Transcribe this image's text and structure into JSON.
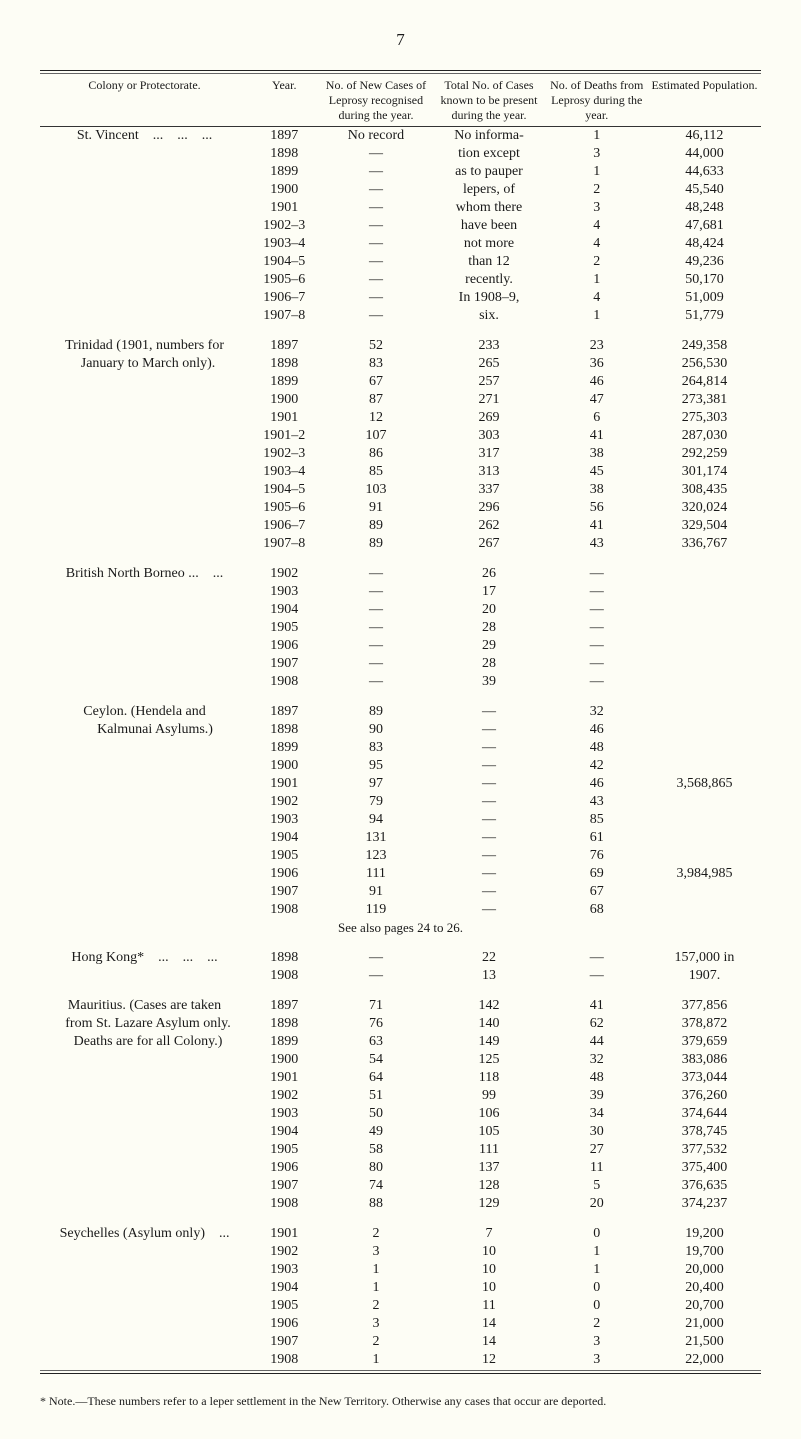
{
  "page_number": "7",
  "header": {
    "col1": "Colony or Protectorate.",
    "col2": "Year.",
    "col3": "No. of New Cases of Leprosy recognised during the year.",
    "col4": "Total No. of Cases known to be present during the year.",
    "col5": "No. of Deaths from Leprosy during the year.",
    "col6": "Estimated Population."
  },
  "st_vincent": {
    "name": "St. Vincent",
    "years": [
      "1897",
      "1898",
      "1899",
      "1900",
      "1901",
      "1902–3",
      "1903–4",
      "1904–5",
      "1905–6",
      "1906–7",
      "1907–8"
    ],
    "new_note": "No record",
    "known_note_lines": [
      "No informa-",
      "tion except",
      "as to pauper",
      "lepers, of",
      "whom there",
      "have been",
      "not more",
      "than 12",
      "recently.",
      "In 1908–9,",
      "six."
    ],
    "deaths": [
      "1",
      "3",
      "1",
      "2",
      "3",
      "4",
      "4",
      "2",
      "1",
      "4",
      "1"
    ],
    "pop": [
      "46,112",
      "44,000",
      "44,633",
      "45,540",
      "48,248",
      "47,681",
      "48,424",
      "49,236",
      "50,170",
      "51,009",
      "51,779"
    ]
  },
  "trinidad": {
    "name": "Trinidad (1901, numbers for January to March only).",
    "rows": [
      {
        "year": "1897",
        "new": "52",
        "known": "233",
        "deaths": "23",
        "pop": "249,358"
      },
      {
        "year": "1898",
        "new": "83",
        "known": "265",
        "deaths": "36",
        "pop": "256,530"
      },
      {
        "year": "1899",
        "new": "67",
        "known": "257",
        "deaths": "46",
        "pop": "264,814"
      },
      {
        "year": "1900",
        "new": "87",
        "known": "271",
        "deaths": "47",
        "pop": "273,381"
      },
      {
        "year": "1901",
        "new": "12",
        "known": "269",
        "deaths": "6",
        "pop": "275,303"
      },
      {
        "year": "1901–2",
        "new": "107",
        "known": "303",
        "deaths": "41",
        "pop": "287,030"
      },
      {
        "year": "1902–3",
        "new": "86",
        "known": "317",
        "deaths": "38",
        "pop": "292,259"
      },
      {
        "year": "1903–4",
        "new": "85",
        "known": "313",
        "deaths": "45",
        "pop": "301,174"
      },
      {
        "year": "1904–5",
        "new": "103",
        "known": "337",
        "deaths": "38",
        "pop": "308,435"
      },
      {
        "year": "1905–6",
        "new": "91",
        "known": "296",
        "deaths": "56",
        "pop": "320,024"
      },
      {
        "year": "1906–7",
        "new": "89",
        "known": "262",
        "deaths": "41",
        "pop": "329,504"
      },
      {
        "year": "1907–8",
        "new": "89",
        "known": "267",
        "deaths": "43",
        "pop": "336,767"
      }
    ]
  },
  "bnb": {
    "name": "British North Borneo ...",
    "rows": [
      {
        "year": "1902",
        "known": "26"
      },
      {
        "year": "1903",
        "known": "17"
      },
      {
        "year": "1904",
        "known": "20"
      },
      {
        "year": "1905",
        "known": "28"
      },
      {
        "year": "1906",
        "known": "29"
      },
      {
        "year": "1907",
        "known": "28"
      },
      {
        "year": "1908",
        "known": "39"
      }
    ]
  },
  "ceylon": {
    "name": "Ceylon. (Hendela and Kalmunai Asylums.)",
    "rows": [
      {
        "year": "1897",
        "new": "89",
        "deaths": "32",
        "pop": ""
      },
      {
        "year": "1898",
        "new": "90",
        "deaths": "46",
        "pop": ""
      },
      {
        "year": "1899",
        "new": "83",
        "deaths": "48",
        "pop": ""
      },
      {
        "year": "1900",
        "new": "95",
        "deaths": "42",
        "pop": ""
      },
      {
        "year": "1901",
        "new": "97",
        "deaths": "46",
        "pop": "3,568,865"
      },
      {
        "year": "1902",
        "new": "79",
        "deaths": "43",
        "pop": ""
      },
      {
        "year": "1903",
        "new": "94",
        "deaths": "85",
        "pop": ""
      },
      {
        "year": "1904",
        "new": "131",
        "deaths": "61",
        "pop": ""
      },
      {
        "year": "1905",
        "new": "123",
        "deaths": "76",
        "pop": ""
      },
      {
        "year": "1906",
        "new": "111",
        "deaths": "69",
        "pop": "3,984,985"
      },
      {
        "year": "1907",
        "new": "91",
        "deaths": "67",
        "pop": ""
      },
      {
        "year": "1908",
        "new": "119",
        "deaths": "68",
        "pop": ""
      }
    ],
    "see_also": "See also pages 24 to 26."
  },
  "hongkong": {
    "name": "Hong Kong*",
    "rows": [
      {
        "year": "1898",
        "known": "22",
        "pop": "157,000 in"
      },
      {
        "year": "1908",
        "known": "13",
        "pop": "1907."
      }
    ]
  },
  "mauritius": {
    "name": "Mauritius. (Cases are taken from St. Lazare Asylum only. Deaths are for all Colony.)",
    "rows": [
      {
        "year": "1897",
        "new": "71",
        "known": "142",
        "deaths": "41",
        "pop": "377,856"
      },
      {
        "year": "1898",
        "new": "76",
        "known": "140",
        "deaths": "62",
        "pop": "378,872"
      },
      {
        "year": "1899",
        "new": "63",
        "known": "149",
        "deaths": "44",
        "pop": "379,659"
      },
      {
        "year": "1900",
        "new": "54",
        "known": "125",
        "deaths": "32",
        "pop": "383,086"
      },
      {
        "year": "1901",
        "new": "64",
        "known": "118",
        "deaths": "48",
        "pop": "373,044"
      },
      {
        "year": "1902",
        "new": "51",
        "known": "99",
        "deaths": "39",
        "pop": "376,260"
      },
      {
        "year": "1903",
        "new": "50",
        "known": "106",
        "deaths": "34",
        "pop": "374,644"
      },
      {
        "year": "1904",
        "new": "49",
        "known": "105",
        "deaths": "30",
        "pop": "378,745"
      },
      {
        "year": "1905",
        "new": "58",
        "known": "111",
        "deaths": "27",
        "pop": "377,532"
      },
      {
        "year": "1906",
        "new": "80",
        "known": "137",
        "deaths": "11",
        "pop": "375,400"
      },
      {
        "year": "1907",
        "new": "74",
        "known": "128",
        "deaths": "5",
        "pop": "376,635"
      },
      {
        "year": "1908",
        "new": "88",
        "known": "129",
        "deaths": "20",
        "pop": "374,237"
      }
    ]
  },
  "seychelles": {
    "name": "Seychelles (Asylum only)",
    "rows": [
      {
        "year": "1901",
        "new": "2",
        "known": "7",
        "deaths": "0",
        "pop": "19,200"
      },
      {
        "year": "1902",
        "new": "3",
        "known": "10",
        "deaths": "1",
        "pop": "19,700"
      },
      {
        "year": "1903",
        "new": "1",
        "known": "10",
        "deaths": "1",
        "pop": "20,000"
      },
      {
        "year": "1904",
        "new": "1",
        "known": "10",
        "deaths": "0",
        "pop": "20,400"
      },
      {
        "year": "1905",
        "new": "2",
        "known": "11",
        "deaths": "0",
        "pop": "20,700"
      },
      {
        "year": "1906",
        "new": "3",
        "known": "14",
        "deaths": "2",
        "pop": "21,000"
      },
      {
        "year": "1907",
        "new": "2",
        "known": "14",
        "deaths": "3",
        "pop": "21,500"
      },
      {
        "year": "1908",
        "new": "1",
        "known": "12",
        "deaths": "3",
        "pop": "22,000"
      }
    ]
  },
  "footnote": "* Note.—These numbers refer to a leper settlement in the New Territory. Otherwise any cases that occur are deported."
}
